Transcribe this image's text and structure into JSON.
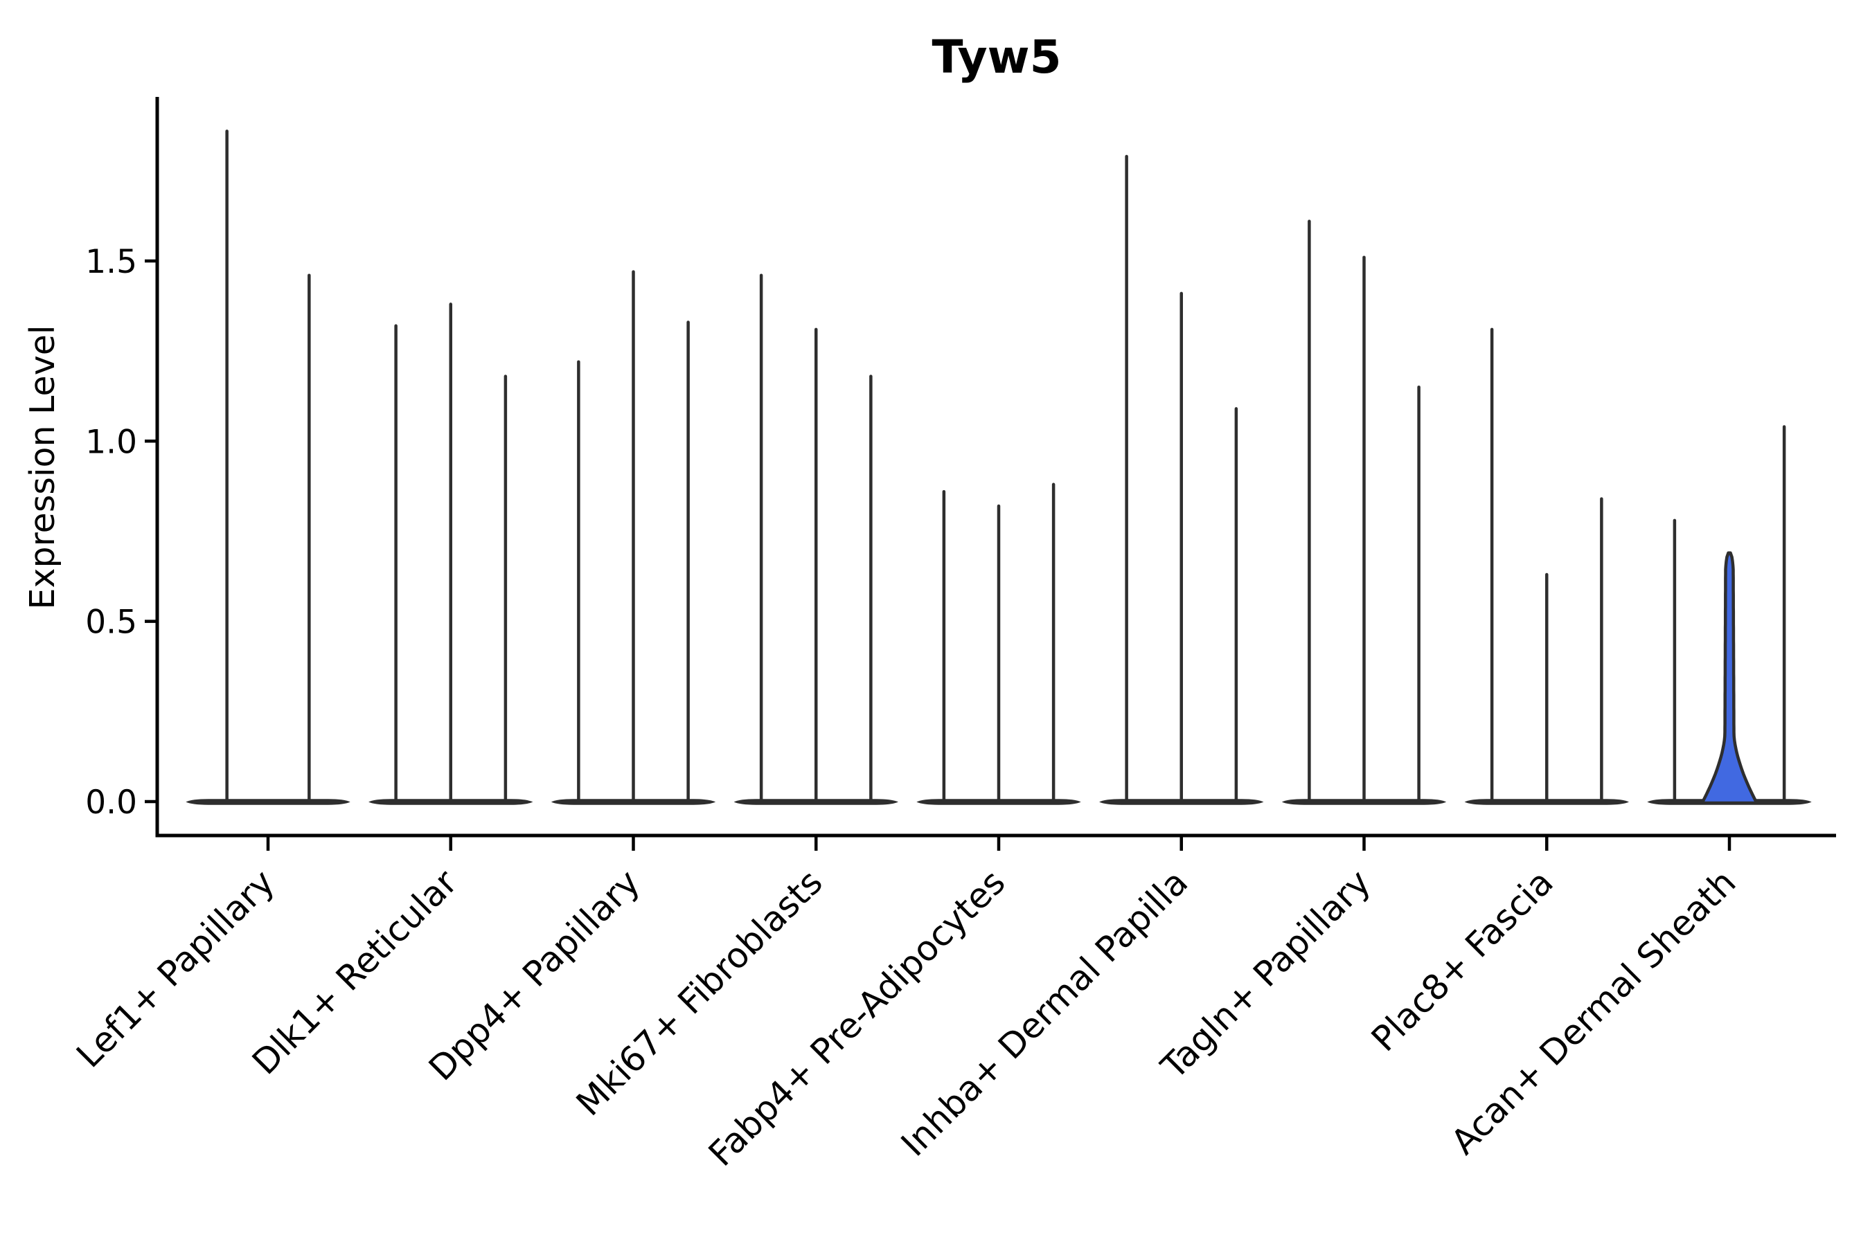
{
  "figure": {
    "background": "#ffffff"
  },
  "chart_data": {
    "type": "violin",
    "title": "Tyw5",
    "xlabel": "",
    "ylabel": "Expression Level",
    "ylim": [
      -0.09,
      1.96
    ],
    "yticks": [
      0,
      0.5,
      1.0,
      1.5
    ],
    "ytick_labels": [
      "0.0",
      "0.5",
      "1.0",
      "1.5"
    ],
    "grid": false,
    "legend_position": "none",
    "x_tick_label_rotation_deg": 45,
    "categories": [
      "Lef1+ Papillary",
      "Dlk1+ Reticular",
      "Dpp4+ Papillary",
      "Mki67+ Fibroblasts",
      "Fabp4+ Pre-Adipocytes",
      "Inhba+ Dermal Papilla",
      "Tagln+ Papillary",
      "Plac8+ Fascia",
      "Acan+ Dermal Sheath"
    ],
    "groups": [
      {
        "label": "Lef1+ Papillary",
        "violin_max_expression": [
          1.86,
          1.46
        ]
      },
      {
        "label": "Dlk1+ Reticular",
        "violin_max_expression": [
          1.32,
          1.38,
          1.18
        ]
      },
      {
        "label": "Dpp4+ Papillary",
        "violin_max_expression": [
          1.22,
          1.47,
          1.33
        ]
      },
      {
        "label": "Mki67+ Fibroblasts",
        "violin_max_expression": [
          1.46,
          1.31,
          1.18
        ]
      },
      {
        "label": "Fabp4+ Pre-Adipocytes",
        "violin_max_expression": [
          0.86,
          0.82,
          0.88
        ]
      },
      {
        "label": "Inhba+ Dermal Papilla",
        "violin_max_expression": [
          1.79,
          1.41,
          1.09
        ]
      },
      {
        "label": "Tagln+ Papillary",
        "violin_max_expression": [
          1.61,
          1.51,
          1.15
        ]
      },
      {
        "label": "Plac8+ Fascia",
        "violin_max_expression": [
          1.31,
          0.63,
          0.84
        ]
      },
      {
        "label": "Acan+ Dermal Sheath",
        "violin_max_expression": [
          0.78,
          0.69,
          1.04
        ]
      }
    ],
    "highlighted_violin": {
      "group": "Acan+ Dermal Sheath",
      "violin_index": 1,
      "max_expression": 0.69,
      "shape": "filled_bell"
    },
    "colors": {
      "violin_outline": "#2e2e2e",
      "highlight_fill": "#4169e1",
      "axis": "#000000",
      "text": "#000000"
    }
  }
}
